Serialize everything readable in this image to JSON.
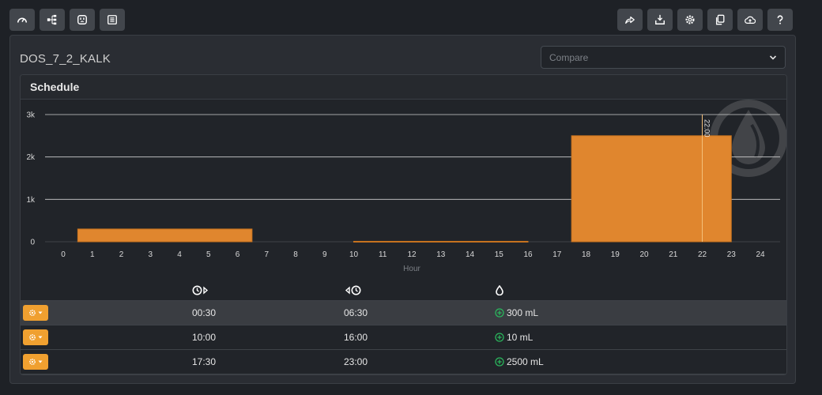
{
  "toolbar": {
    "left": [
      "dashboard-icon",
      "sitemap-icon",
      "outlet-icon",
      "list-icon"
    ],
    "right": [
      "share-icon",
      "download-icon",
      "settings-icon",
      "copy-icon",
      "cloud-upload-icon",
      "help-icon"
    ]
  },
  "device": {
    "title": "DOS_7_2_KALK"
  },
  "compare": {
    "placeholder": "Compare"
  },
  "card": {
    "title": "Schedule"
  },
  "chart_data": {
    "type": "bar",
    "xlabel": "Hour",
    "x_ticks": [
      0,
      1,
      2,
      3,
      4,
      5,
      6,
      7,
      8,
      9,
      10,
      11,
      12,
      13,
      14,
      15,
      16,
      17,
      18,
      19,
      20,
      21,
      22,
      23,
      24
    ],
    "y_ticks": [
      {
        "value": 0,
        "label": "0"
      },
      {
        "value": 1000,
        "label": "1k"
      },
      {
        "value": 2000,
        "label": "2k"
      },
      {
        "value": 3000,
        "label": "3k"
      }
    ],
    "ylim": [
      0,
      3000
    ],
    "xlim": [
      0,
      24
    ],
    "bars": [
      {
        "start": 0.5,
        "end": 6.5,
        "value": 300
      },
      {
        "start": 10,
        "end": 16,
        "value": 10
      },
      {
        "start": 17.5,
        "end": 23,
        "value": 2500
      }
    ],
    "marker": {
      "x": 22,
      "label": "22:00"
    },
    "bar_color": "#e0862e",
    "grid": true
  },
  "table": {
    "headers": [
      "start-clock-icon",
      "end-clock-icon",
      "drop-icon"
    ],
    "rows": [
      {
        "start": "00:30",
        "end": "06:30",
        "amount": "300 mL"
      },
      {
        "start": "10:00",
        "end": "16:00",
        "amount": "10 mL"
      },
      {
        "start": "17:30",
        "end": "23:00",
        "amount": "2500 mL"
      }
    ]
  },
  "colors": {
    "accent": "#f0a030",
    "add": "#2ab55c",
    "background": "#1e2126"
  }
}
